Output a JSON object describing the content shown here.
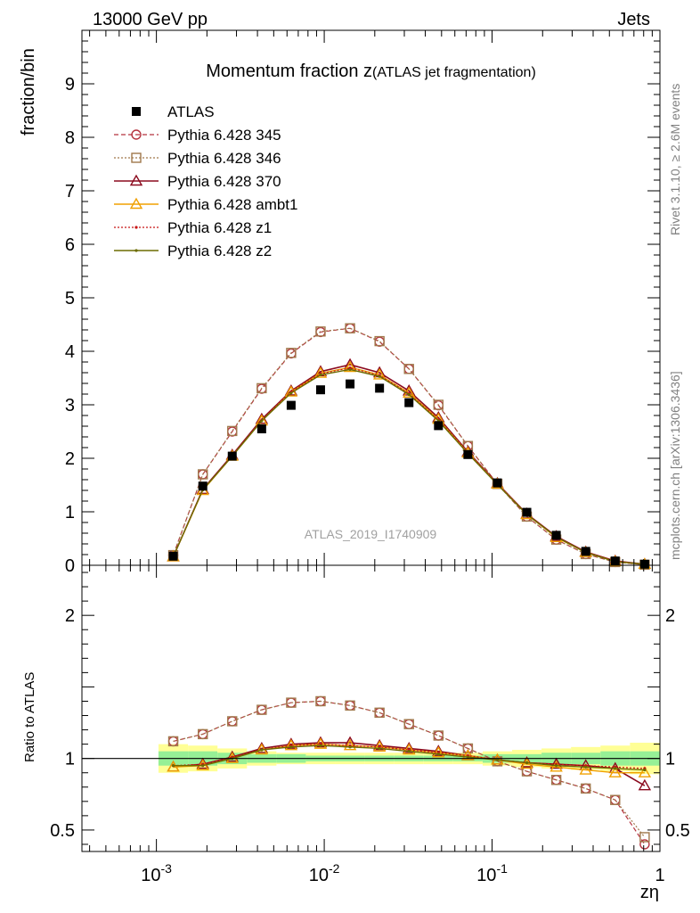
{
  "header": {
    "energy": "13000 GeV pp",
    "process": "Jets",
    "title_main": "Momentum fraction z",
    "title_sub": "(ATLAS jet fragmentation)",
    "side_rivet": "Rivet 3.1.10, ≥ 2.6M events",
    "side_site": "mcplots.cern.ch [arXiv:1306.3436]",
    "analysis_id": "ATLAS_2019_I1740909"
  },
  "chart_data": {
    "type": "line",
    "x_scale": "log",
    "xlabel": "zη",
    "x": [
      0.00126,
      0.00189,
      0.00283,
      0.00424,
      0.00635,
      0.00951,
      0.01425,
      0.02135,
      0.03198,
      0.04791,
      0.07177,
      0.10752,
      0.16107,
      0.24129,
      0.36148,
      0.54153,
      0.81126
    ],
    "xlim": [
      0.00036,
      1.0
    ],
    "xticks": [
      "10^-3",
      "10^-2",
      "10^-1",
      "1"
    ],
    "main": {
      "ylabel": "fraction/bin",
      "ylim": [
        0,
        10
      ],
      "yticks": [
        "0",
        "1",
        "2",
        "3",
        "4",
        "5",
        "6",
        "7",
        "8",
        "9"
      ],
      "series": [
        {
          "name": "ATLAS",
          "color": "#000000",
          "marker": "square-filled",
          "dash": "none",
          "values": [
            0.17,
            1.48,
            2.04,
            2.55,
            2.99,
            3.28,
            3.39,
            3.31,
            3.04,
            2.61,
            2.07,
            1.54,
            0.99,
            0.56,
            0.26,
            0.08,
            0.02
          ]
        },
        {
          "name": "Pythia 6.428 345",
          "color": "#b5333f",
          "marker": "circle-open",
          "dash": "dashed",
          "values": [
            0.19,
            1.7,
            2.5,
            3.3,
            3.96,
            4.36,
            4.43,
            4.18,
            3.67,
            2.99,
            2.23,
            1.52,
            0.91,
            0.48,
            0.21,
            0.06,
            0.01
          ]
        },
        {
          "name": "Pythia 6.428 346",
          "color": "#a0784b",
          "marker": "square-open",
          "dash": "dotted",
          "values": [
            0.19,
            1.7,
            2.51,
            3.31,
            3.97,
            4.37,
            4.43,
            4.19,
            3.67,
            3.0,
            2.23,
            1.52,
            0.91,
            0.48,
            0.21,
            0.06,
            0.01
          ]
        },
        {
          "name": "Pythia 6.428 370",
          "color": "#8b0a1e",
          "marker": "triangle-open",
          "dash": "none",
          "values": [
            0.16,
            1.42,
            2.06,
            2.73,
            3.26,
            3.62,
            3.75,
            3.6,
            3.26,
            2.76,
            2.12,
            1.53,
            0.96,
            0.54,
            0.25,
            0.08,
            0.02
          ]
        },
        {
          "name": "Pythia 6.428 ambt1",
          "color": "#f0a000",
          "marker": "triangle-open",
          "dash": "none",
          "values": [
            0.16,
            1.4,
            2.04,
            2.7,
            3.24,
            3.59,
            3.7,
            3.56,
            3.22,
            2.73,
            2.1,
            1.52,
            0.95,
            0.52,
            0.24,
            0.07,
            0.02
          ]
        },
        {
          "name": "Pythia 6.428 z1",
          "color": "#c81414",
          "marker": "dot",
          "dash": "dotted",
          "values": [
            0.16,
            1.41,
            2.05,
            2.71,
            3.24,
            3.58,
            3.69,
            3.55,
            3.21,
            2.72,
            2.1,
            1.52,
            0.96,
            0.53,
            0.25,
            0.08,
            0.02
          ]
        },
        {
          "name": "Pythia 6.428 z2",
          "color": "#6b6b00",
          "marker": "dot",
          "dash": "none",
          "values": [
            0.16,
            1.41,
            2.04,
            2.7,
            3.22,
            3.56,
            3.66,
            3.53,
            3.19,
            2.7,
            2.09,
            1.51,
            0.95,
            0.53,
            0.24,
            0.07,
            0.02
          ]
        }
      ]
    },
    "ratio": {
      "ylabel": "Ratio to ATLAS",
      "ylim": [
        0.35,
        2.35
      ],
      "yticks": [
        "0.5",
        "1",
        "2"
      ],
      "band_green_halfwidth": [
        0.05,
        0.05,
        0.04,
        0.03,
        0.03,
        0.02,
        0.02,
        0.02,
        0.02,
        0.02,
        0.02,
        0.03,
        0.03,
        0.04,
        0.04,
        0.05,
        0.05
      ],
      "band_yellow_halfwidth": [
        0.1,
        0.09,
        0.07,
        0.05,
        0.04,
        0.04,
        0.04,
        0.04,
        0.04,
        0.04,
        0.04,
        0.05,
        0.06,
        0.07,
        0.08,
        0.09,
        0.11
      ],
      "series": [
        {
          "name": "Pythia 6.428 345",
          "values": [
            1.12,
            1.17,
            1.26,
            1.34,
            1.39,
            1.4,
            1.37,
            1.32,
            1.24,
            1.16,
            1.07,
            0.98,
            0.91,
            0.85,
            0.79,
            0.71,
            0.4
          ]
        },
        {
          "name": "Pythia 6.428 346",
          "values": [
            1.12,
            1.17,
            1.26,
            1.34,
            1.39,
            1.4,
            1.37,
            1.32,
            1.24,
            1.16,
            1.07,
            0.98,
            0.91,
            0.85,
            0.79,
            0.71,
            0.45
          ]
        },
        {
          "name": "Pythia 6.428 370",
          "values": [
            0.94,
            0.96,
            1.01,
            1.07,
            1.1,
            1.11,
            1.11,
            1.09,
            1.07,
            1.05,
            1.02,
            0.99,
            0.97,
            0.96,
            0.95,
            0.93,
            0.81
          ]
        },
        {
          "name": "Pythia 6.428 ambt1",
          "values": [
            0.94,
            0.95,
            1.0,
            1.06,
            1.09,
            1.1,
            1.09,
            1.08,
            1.06,
            1.04,
            1.02,
            0.99,
            0.96,
            0.94,
            0.92,
            0.9,
            0.9
          ]
        },
        {
          "name": "Pythia 6.428 z1",
          "values": [
            0.95,
            0.96,
            1.01,
            1.06,
            1.09,
            1.1,
            1.09,
            1.08,
            1.06,
            1.04,
            1.02,
            0.99,
            0.97,
            0.96,
            0.95,
            0.94,
            0.93
          ]
        },
        {
          "name": "Pythia 6.428 z2",
          "values": [
            0.95,
            0.95,
            1.0,
            1.06,
            1.08,
            1.09,
            1.08,
            1.07,
            1.05,
            1.03,
            1.01,
            0.99,
            0.97,
            0.95,
            0.94,
            0.93,
            0.92
          ]
        }
      ]
    }
  }
}
